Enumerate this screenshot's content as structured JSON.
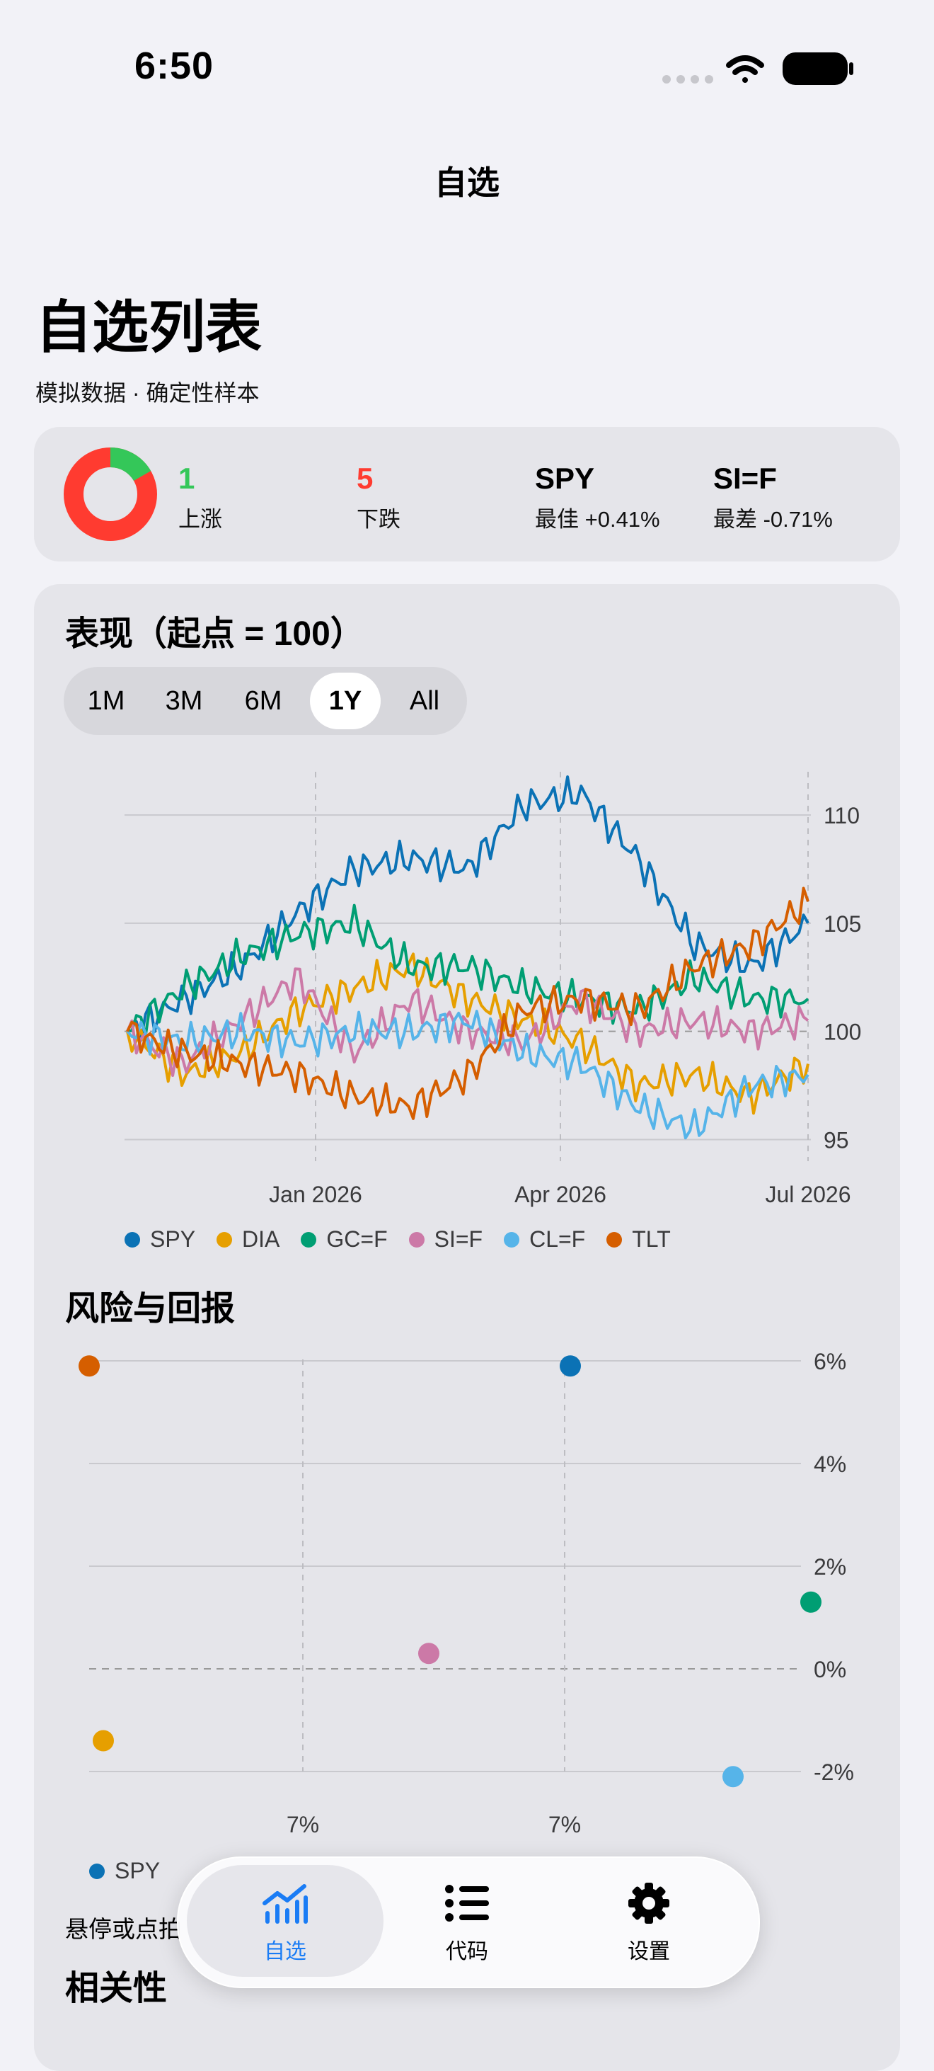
{
  "status_bar": {
    "time": "6:50"
  },
  "nav": {
    "title": "自选"
  },
  "header": {
    "title": "自选列表",
    "subtitle": "模拟数据 · 确定性样本"
  },
  "summary": {
    "up_count": "1",
    "up_label": "上涨",
    "down_count": "5",
    "down_label": "下跌",
    "best_symbol": "SPY",
    "best_label": "最佳 +0.41%",
    "worst_symbol": "SI=F",
    "worst_label": "最差 -0.71%",
    "donut": {
      "up": 1,
      "down": 5,
      "up_color": "#34c759",
      "down_color": "#ff3b30"
    }
  },
  "performance": {
    "title": "表现（起点 = 100）",
    "ranges": [
      "1M",
      "3M",
      "6M",
      "1Y",
      "All"
    ],
    "selected_range": "1Y"
  },
  "colors": {
    "SPY": "#0b72b5",
    "DIA": "#e69f00",
    "GC=F": "#009e73",
    "SI=F": "#cc79a7",
    "CL=F": "#56b4e9",
    "TLT": "#d55e00",
    "accent": "#1a7cf5"
  },
  "chart_data": [
    {
      "type": "line",
      "x_tick_labels": [
        "Jan 2026",
        "Apr 2026",
        "Jul 2026"
      ],
      "y_ticks": [
        95,
        100,
        105,
        110
      ],
      "ylim": [
        94,
        112
      ],
      "baseline": 100,
      "grid": true,
      "legend": "bottom",
      "x": [
        "2025-07",
        "2025-08",
        "2025-09",
        "2025-10",
        "2025-11",
        "2025-12",
        "2026-01",
        "2026-02",
        "2026-03",
        "2026-04",
        "2026-05",
        "2026-06",
        "2026-07"
      ],
      "series": [
        {
          "name": "SPY",
          "values": [
            100.0,
            101.5,
            103.0,
            105.5,
            107.5,
            108.0,
            107.5,
            110.5,
            111.0,
            108.0,
            104.0,
            103.0,
            105.0
          ]
        },
        {
          "name": "DIA",
          "values": [
            100.0,
            98.0,
            99.0,
            101.0,
            102.0,
            103.0,
            101.5,
            100.5,
            99.5,
            97.5,
            98.0,
            97.0,
            98.5
          ]
        },
        {
          "name": "GC=F",
          "values": [
            100.0,
            102.0,
            103.5,
            104.5,
            105.0,
            103.0,
            103.0,
            102.0,
            101.5,
            101.0,
            102.5,
            101.5,
            101.5
          ]
        },
        {
          "name": "SI=F",
          "values": [
            100.0,
            98.5,
            100.5,
            102.5,
            99.0,
            101.5,
            100.0,
            99.5,
            101.5,
            100.0,
            100.5,
            100.0,
            100.5
          ]
        },
        {
          "name": "CL=F",
          "values": [
            100.0,
            99.5,
            100.0,
            99.5,
            100.0,
            100.0,
            100.5,
            99.0,
            98.5,
            96.5,
            95.5,
            97.5,
            98.0
          ]
        },
        {
          "name": "TLT",
          "values": [
            100.0,
            99.0,
            98.5,
            98.0,
            97.0,
            96.5,
            98.0,
            101.0,
            101.5,
            101.0,
            103.0,
            104.0,
            106.0
          ]
        }
      ]
    },
    {
      "type": "scatter",
      "title": "风险与回报",
      "x_tick_labels": [
        "7%",
        "7%"
      ],
      "y_ticks": [
        "6%",
        "4%",
        "2%",
        "0%",
        "-2%"
      ],
      "ylim": [
        -2.5,
        6.2
      ],
      "grid": true,
      "legend": "bottom",
      "points": [
        {
          "name": "TLT",
          "x": 0.0,
          "y": 5.9
        },
        {
          "name": "SPY",
          "x": 0.68,
          "y": 5.9
        },
        {
          "name": "GC=F",
          "x": 1.02,
          "y": 1.3
        },
        {
          "name": "SI=F",
          "x": 0.48,
          "y": 0.3
        },
        {
          "name": "DIA",
          "x": 0.02,
          "y": -1.4
        },
        {
          "name": "CL=F",
          "x": 0.91,
          "y": -2.1
        }
      ]
    }
  ],
  "risk": {
    "title": "风险与回报",
    "legend_visible": [
      "SPY"
    ]
  },
  "hint": {
    "text": "悬停或点拍"
  },
  "correlation": {
    "title": "相关性"
  },
  "tabbar": {
    "tabs": [
      {
        "label": "自选",
        "icon": "chart-icon"
      },
      {
        "label": "代码",
        "icon": "list-icon"
      },
      {
        "label": "设置",
        "icon": "gear-icon"
      }
    ],
    "selected": "自选"
  }
}
